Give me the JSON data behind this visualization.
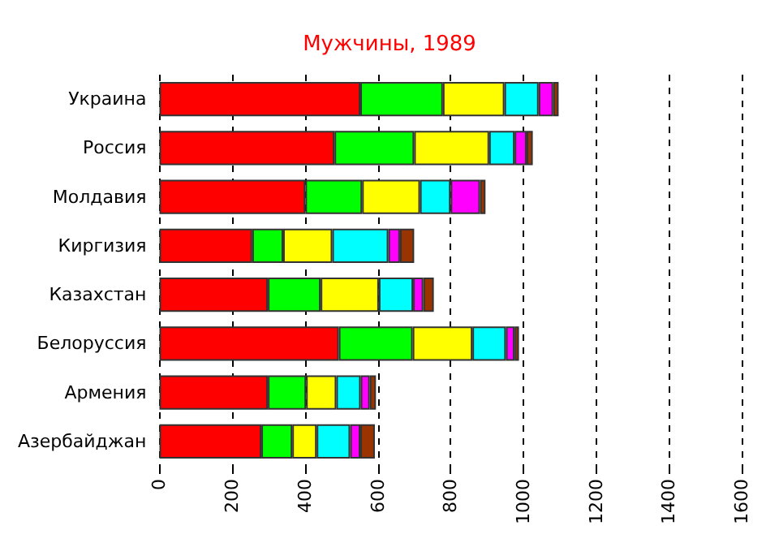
{
  "chart_data": {
    "type": "bar",
    "title": "Мужчины, 1989",
    "orientation": "horizontal",
    "stacked": true,
    "categories": [
      "Украина",
      "Россия",
      "Молдавия",
      "Киргизия",
      "Казахстан",
      "Белоруссия",
      "Армения",
      "Азербайджан"
    ],
    "series": [
      {
        "color": "#ff0000",
        "values": [
          552,
          481,
          401,
          255,
          298,
          493,
          298,
          280
        ]
      },
      {
        "color": "#00ff00",
        "values": [
          227,
          219,
          156,
          85,
          145,
          203,
          105,
          85
        ]
      },
      {
        "color": "#ffff00",
        "values": [
          169,
          206,
          159,
          135,
          160,
          164,
          83,
          67
        ]
      },
      {
        "color": "#00ffff",
        "values": [
          94,
          70,
          84,
          154,
          94,
          92,
          67,
          92
        ]
      },
      {
        "color": "#ff00ff",
        "values": [
          40,
          33,
          81,
          32,
          28,
          24,
          25,
          28
        ]
      },
      {
        "color": "#993300",
        "values": [
          15,
          17,
          15,
          39,
          29,
          12,
          17,
          40
        ]
      }
    ],
    "xlim": [
      0,
      1600
    ],
    "xticks": [
      0,
      200,
      400,
      600,
      800,
      1000,
      1200,
      1400,
      1600
    ],
    "grid": "x"
  }
}
